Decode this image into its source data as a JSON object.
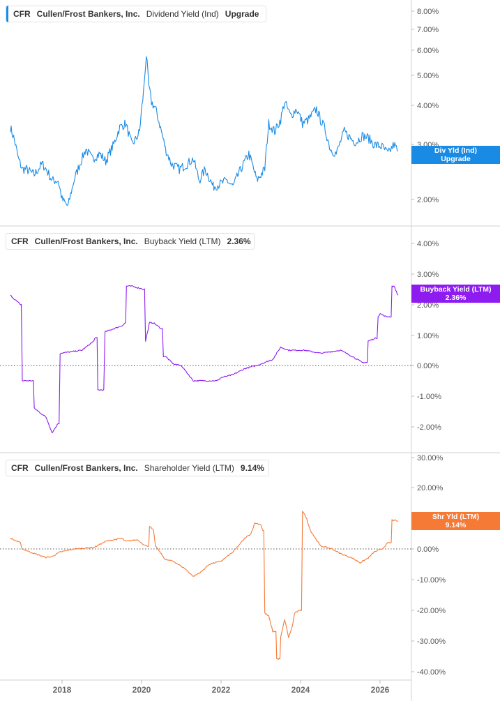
{
  "colors": {
    "panel1": "#1a8be5",
    "panel2": "#8e1bf0",
    "panel3": "#f57a36"
  },
  "x_ticks": [
    "2018",
    "2020",
    "2022",
    "2024",
    "2026"
  ],
  "panels": [
    {
      "legend": {
        "ticker": "CFR",
        "company": "Cullen/Frost Bankers, Inc.",
        "metric": "Dividend Yield (Ind)",
        "value": "Upgrade"
      },
      "tag": {
        "line1": "Div Yld (Ind)",
        "line2": "Upgrade"
      },
      "y_ticks": [
        "8.00%",
        "7.00%",
        "6.00%",
        "5.00%",
        "4.00%",
        "3.00%",
        "2.00%"
      ]
    },
    {
      "legend": {
        "ticker": "CFR",
        "company": "Cullen/Frost Bankers, Inc.",
        "metric": "Buyback Yield (LTM)",
        "value": "2.36%"
      },
      "tag": {
        "line1": "Buyback Yield (LTM)",
        "line2": "2.36%"
      },
      "y_ticks": [
        "4.00%",
        "3.00%",
        "2.00%",
        "1.00%",
        "0.00%",
        "-1.00%",
        "-2.00%"
      ]
    },
    {
      "legend": {
        "ticker": "CFR",
        "company": "Cullen/Frost Bankers, Inc.",
        "metric": "Shareholder Yield (LTM)",
        "value": "9.14%"
      },
      "tag": {
        "line1": "Shr Yld (LTM)",
        "line2": "9.14%"
      },
      "y_ticks": [
        "30.00%",
        "20.00%",
        "10.00%",
        "0.00%",
        "-10.00%",
        "-20.00%",
        "-30.00%",
        "-40.00%"
      ]
    }
  ],
  "chart_data": [
    {
      "type": "line",
      "scale": "log",
      "ylim": [
        1.6,
        8.5
      ],
      "series": [
        {
          "name": "Dividend Yield (Ind)",
          "x": [
            2016.7,
            2016.8,
            2016.9,
            2017.0,
            2017.1,
            2017.3,
            2017.5,
            2017.6,
            2017.75,
            2017.9,
            2018.0,
            2018.15,
            2018.3,
            2018.45,
            2018.6,
            2018.75,
            2018.95,
            2019.1,
            2019.3,
            2019.45,
            2019.6,
            2019.75,
            2019.85,
            2019.95,
            2020.05,
            2020.12,
            2020.18,
            2020.25,
            2020.35,
            2020.5,
            2020.6,
            2020.75,
            2020.95,
            2021.15,
            2021.3,
            2021.45,
            2021.6,
            2021.8,
            2022.0,
            2022.15,
            2022.3,
            2022.5,
            2022.7,
            2022.9,
            2023.0,
            2023.1,
            2023.2,
            2023.35,
            2023.5,
            2023.6,
            2023.75,
            2023.9,
            2024.05,
            2024.2,
            2024.4,
            2024.5,
            2024.6,
            2024.75,
            2024.9,
            2025.1,
            2025.3,
            2025.4,
            2025.55,
            2025.7,
            2025.85,
            2026.05,
            2026.2,
            2026.35,
            2026.45
          ],
          "y": [
            3.4,
            3.1,
            2.7,
            2.5,
            2.5,
            2.4,
            2.6,
            2.5,
            2.3,
            2.3,
            2.0,
            1.9,
            2.3,
            2.6,
            2.9,
            2.7,
            2.8,
            2.65,
            3.0,
            3.4,
            3.5,
            3.0,
            3.1,
            3.3,
            4.4,
            5.8,
            4.6,
            4.1,
            3.9,
            3.3,
            2.9,
            2.6,
            2.5,
            2.6,
            2.7,
            2.3,
            2.5,
            2.2,
            2.25,
            2.3,
            2.2,
            2.5,
            2.8,
            2.3,
            2.4,
            2.5,
            3.5,
            3.3,
            3.6,
            4.1,
            3.7,
            3.9,
            3.5,
            3.6,
            3.9,
            3.6,
            3.4,
            2.9,
            2.8,
            3.3,
            3.1,
            3.05,
            3.2,
            3.15,
            3.0,
            2.95,
            2.8,
            3.0,
            2.85
          ]
        }
      ]
    },
    {
      "type": "line",
      "ylim": [
        -2.4,
        4.6
      ],
      "series": [
        {
          "name": "Buyback Yield (LTM)",
          "x": [
            2016.7,
            2016.95,
            2017.0,
            2017.05,
            2017.3,
            2017.6,
            2017.75,
            2017.9,
            2017.95,
            2018.5,
            2018.8,
            2018.82,
            2018.9,
            2019.05,
            2019.08,
            2019.5,
            2019.6,
            2019.62,
            2019.75,
            2020.05,
            2020.1,
            2020.2,
            2020.3,
            2020.5,
            2020.55,
            2020.6,
            2020.8,
            2021.0,
            2021.3,
            2021.5,
            2021.9,
            2022.0,
            2022.3,
            2022.6,
            2022.9,
            2023.1,
            2023.3,
            2023.5,
            2023.7,
            2024.1,
            2024.5,
            2025.0,
            2025.3,
            2025.55,
            2025.7,
            2025.9,
            2025.95,
            2026.0,
            2026.15,
            2026.3,
            2026.35,
            2026.45
          ],
          "y": [
            2.3,
            2.0,
            -0.5,
            -0.5,
            -1.4,
            -1.7,
            -2.2,
            -1.9,
            0.4,
            0.5,
            0.8,
            0.9,
            -0.8,
            -0.8,
            1.1,
            1.3,
            1.4,
            2.6,
            2.6,
            2.5,
            0.8,
            1.4,
            1.4,
            1.2,
            0.3,
            0.3,
            0.05,
            0.0,
            -0.5,
            -0.5,
            -0.5,
            -0.4,
            -0.3,
            -0.1,
            0.0,
            0.1,
            0.2,
            0.6,
            0.5,
            0.5,
            0.4,
            0.5,
            0.3,
            0.1,
            0.8,
            0.9,
            1.6,
            1.7,
            1.6,
            2.6,
            2.6,
            2.3
          ]
        }
      ]
    },
    {
      "type": "line",
      "ylim": [
        -40,
        30
      ],
      "series": [
        {
          "name": "Shareholder Yield (LTM)",
          "x": [
            2016.7,
            2016.95,
            2017.0,
            2017.3,
            2017.6,
            2017.75,
            2017.95,
            2018.3,
            2018.8,
            2019.1,
            2019.5,
            2019.6,
            2019.9,
            2020.1,
            2020.2,
            2020.3,
            2020.35,
            2020.6,
            2020.8,
            2021.1,
            2021.3,
            2021.5,
            2021.7,
            2022.0,
            2022.3,
            2022.6,
            2022.75,
            2022.85,
            2023.0,
            2023.05,
            2023.1,
            2023.2,
            2023.3,
            2023.4,
            2023.5,
            2023.6,
            2023.7,
            2023.8,
            2023.85,
            2024.0,
            2024.05,
            2024.15,
            2024.25,
            2024.5,
            2024.8,
            2025.0,
            2025.3,
            2025.5,
            2025.7,
            2025.85,
            2026.05,
            2026.2,
            2026.3,
            2026.45
          ],
          "y": [
            3.5,
            2.0,
            0.0,
            -1.5,
            -2.8,
            -2.5,
            -1.0,
            0.0,
            0.5,
            2.5,
            3.5,
            2.5,
            3.0,
            1.0,
            7.5,
            6.0,
            1.0,
            -3.5,
            -4.0,
            -6.5,
            -9.0,
            -7.5,
            -5.0,
            -4.0,
            -1.0,
            3.5,
            5.0,
            8.5,
            8.0,
            6.0,
            -21.0,
            -22.0,
            -27.0,
            -36.0,
            -29.0,
            -23.0,
            -29.0,
            -25.0,
            -21.0,
            -20.0,
            12.5,
            10.0,
            6.0,
            1.0,
            0.0,
            -1.5,
            -3.0,
            -4.5,
            -3.0,
            -1.0,
            0.0,
            2.0,
            9.5,
            9.1
          ]
        }
      ]
    }
  ]
}
